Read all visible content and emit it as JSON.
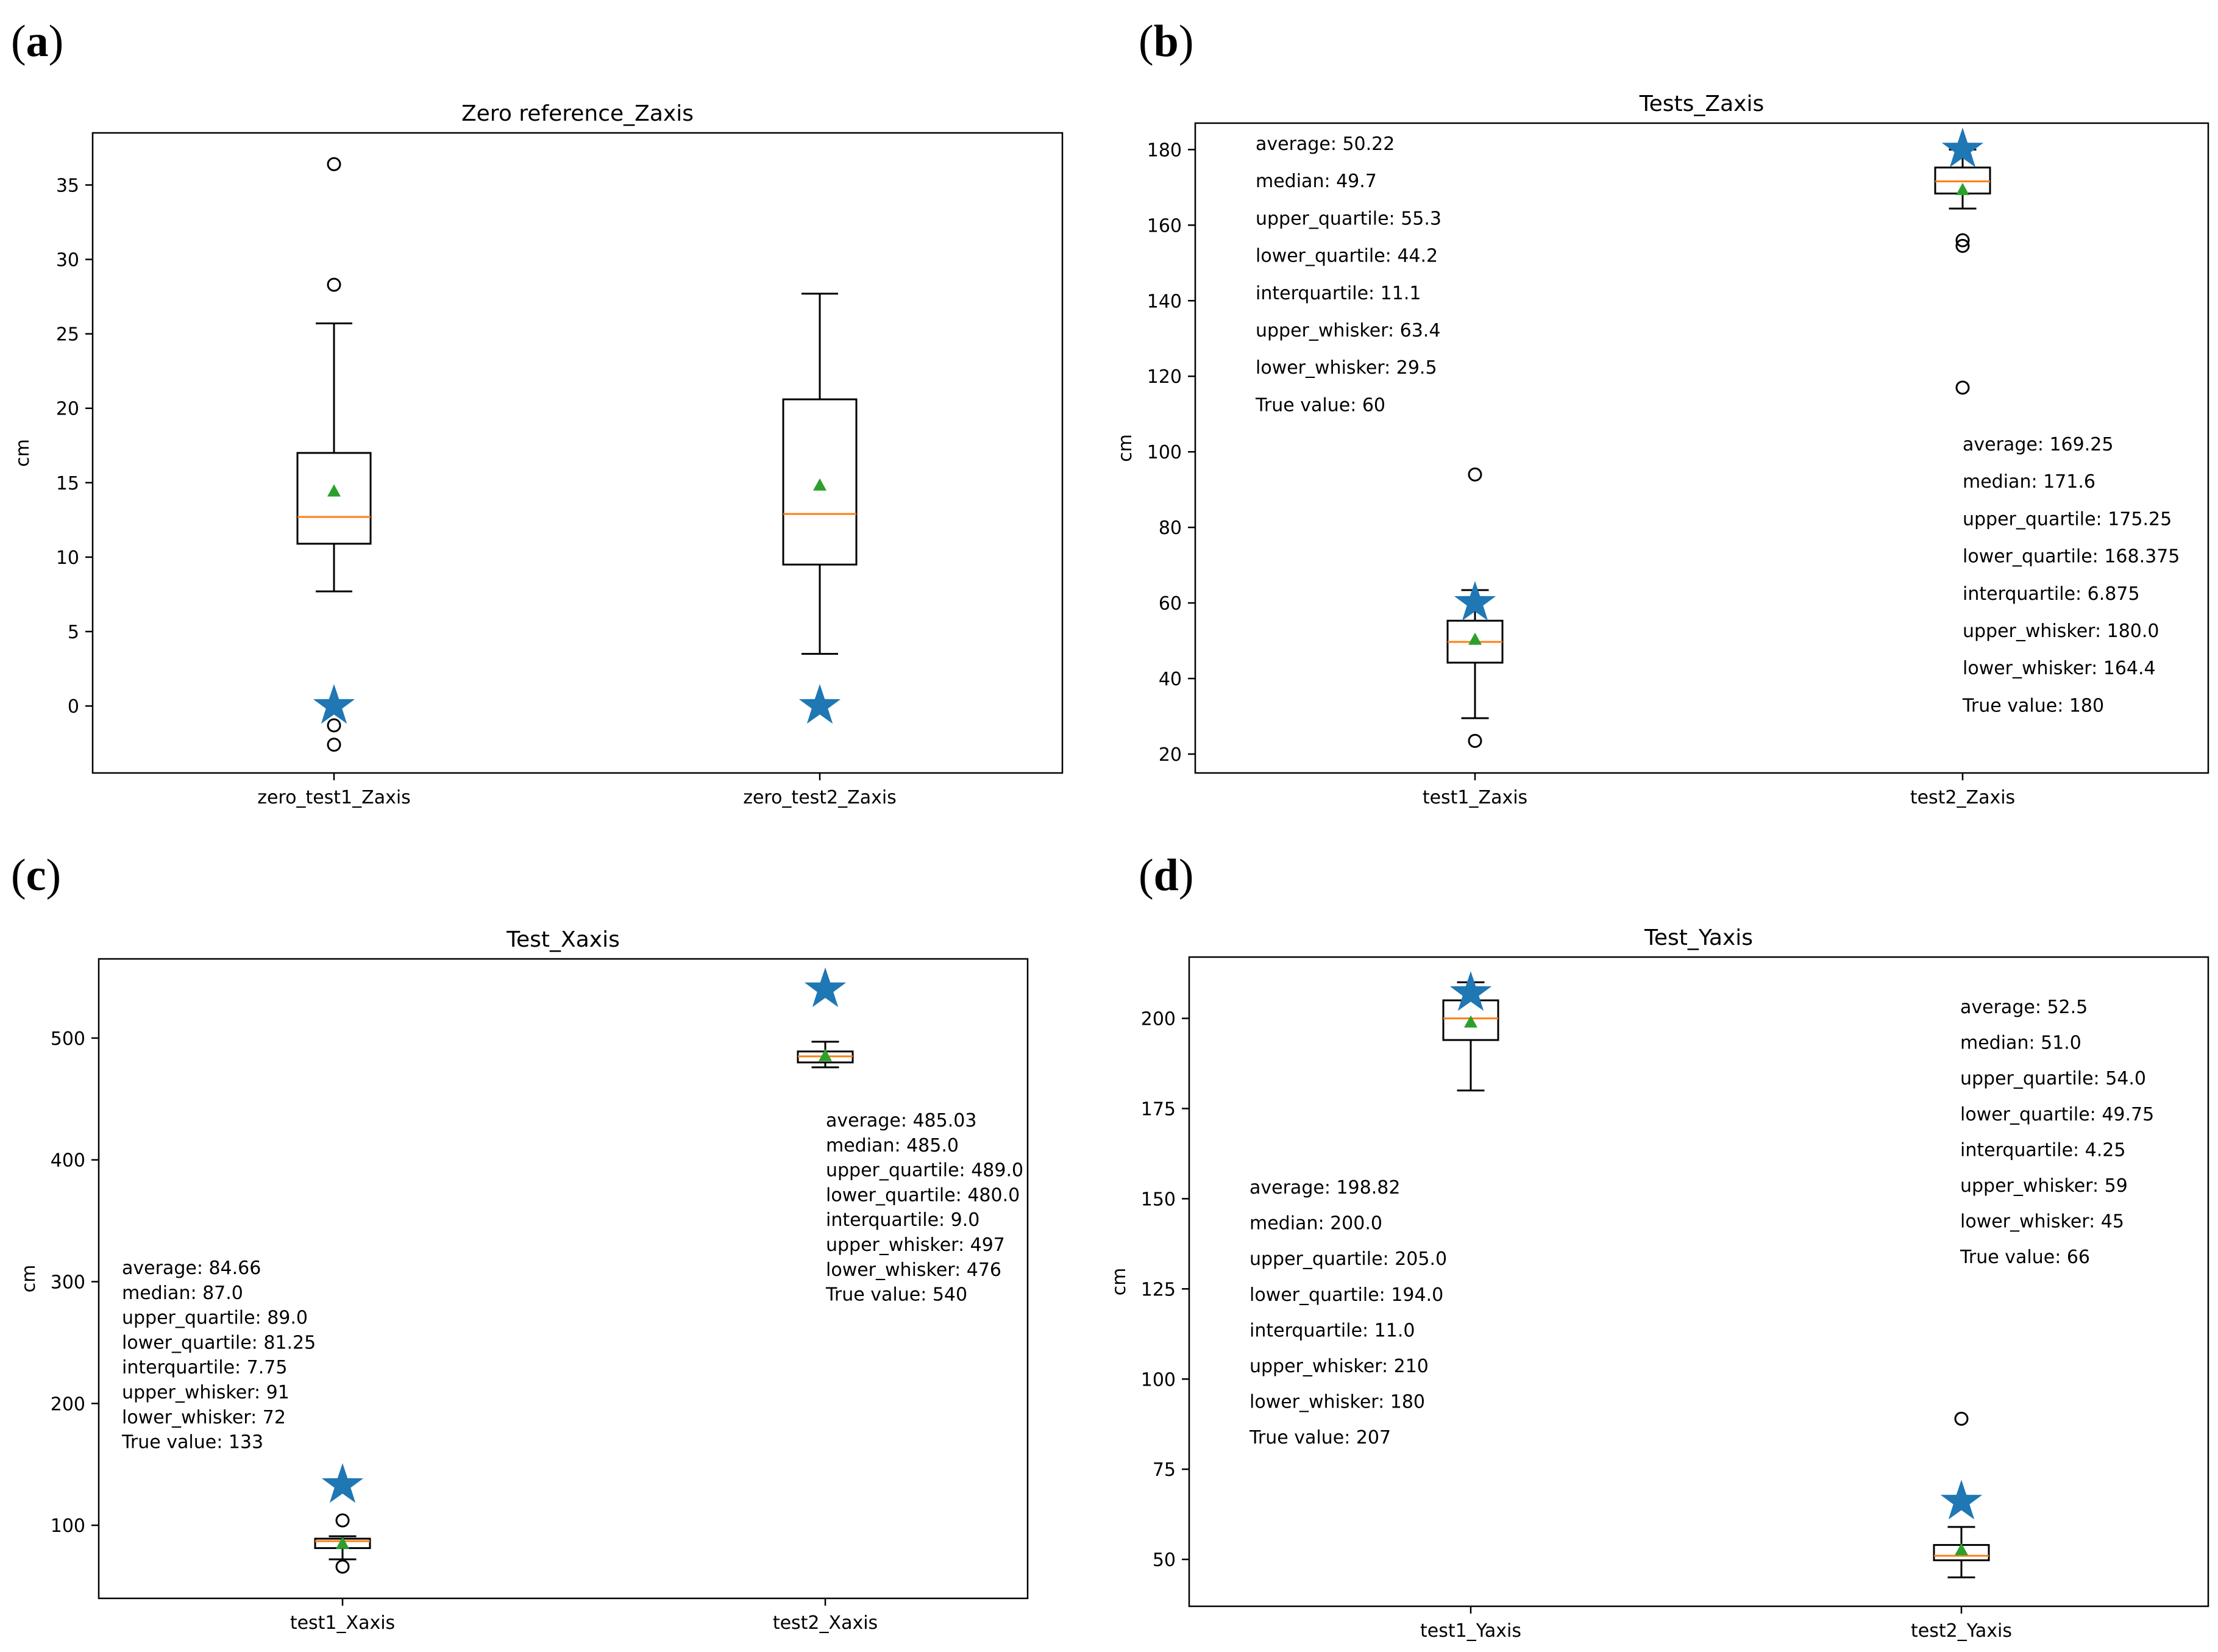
{
  "style": {
    "box_color": "#000000",
    "median_color": "#ff7f0e",
    "mean_color": "#2ca02c",
    "true_value_color": "#1f77b4"
  },
  "chart_data": [
    {
      "id": "a",
      "panel_label": "a",
      "type": "boxplot",
      "title": "Zero reference_Zaxis",
      "ylabel": "cm",
      "ylim": [
        -4.5,
        38.5
      ],
      "yticks": [
        0,
        5,
        10,
        15,
        20,
        25,
        30,
        35
      ],
      "categories": [
        "zero_test1_Zaxis",
        "zero_test2_Zaxis"
      ],
      "boxes": [
        {
          "q1": 10.9,
          "median": 12.7,
          "q3": 17.0,
          "whisker_low": 7.7,
          "whisker_high": 25.7,
          "mean": 14.4,
          "outliers": [
            36.4,
            28.3,
            -1.3,
            -2.6
          ],
          "true_value": 0
        },
        {
          "q1": 9.5,
          "median": 12.9,
          "q3": 20.6,
          "whisker_low": 3.5,
          "whisker_high": 27.7,
          "mean": 14.8,
          "outliers": [],
          "true_value": 0
        }
      ],
      "annotations": []
    },
    {
      "id": "b",
      "panel_label": "b",
      "type": "boxplot",
      "title": "Tests_Zaxis",
      "ylabel": "cm",
      "ylim": [
        15,
        187
      ],
      "yticks": [
        20,
        40,
        60,
        80,
        100,
        120,
        140,
        160,
        180
      ],
      "categories": [
        "test1_Zaxis",
        "test2_Zaxis"
      ],
      "boxes": [
        {
          "q1": 44.2,
          "median": 49.7,
          "q3": 55.3,
          "whisker_low": 29.5,
          "whisker_high": 63.4,
          "mean": 50.22,
          "outliers": [
            94,
            23.5
          ],
          "true_value": 60
        },
        {
          "q1": 168.375,
          "median": 171.6,
          "q3": 175.25,
          "whisker_low": 164.4,
          "whisker_high": 180.0,
          "mean": 169.25,
          "outliers": [
            156,
            154.5,
            117
          ],
          "true_value": 180
        }
      ],
      "annotations": [
        {
          "box": 0,
          "lines": [
            "average: 50.22",
            "median: 49.7",
            "upper_quartile: 55.3",
            "lower_quartile: 44.2",
            "interquartile: 11.1",
            "upper_whisker: 63.4",
            "lower_whisker: 29.5",
            "True value: 60"
          ]
        },
        {
          "box": 1,
          "lines": [
            "average: 169.25",
            "median: 171.6",
            "upper_quartile: 175.25",
            "lower_quartile: 168.375",
            "interquartile: 6.875",
            "upper_whisker: 180.0",
            "lower_whisker: 164.4",
            "True value: 180"
          ]
        }
      ]
    },
    {
      "id": "c",
      "panel_label": "c",
      "type": "boxplot",
      "title": "Test_Xaxis",
      "ylabel": "cm",
      "ylim": [
        40,
        565
      ],
      "yticks": [
        100,
        200,
        300,
        400,
        500
      ],
      "categories": [
        "test1_Xaxis",
        "test2_Xaxis"
      ],
      "boxes": [
        {
          "q1": 81.25,
          "median": 87.0,
          "q3": 89.0,
          "whisker_low": 72,
          "whisker_high": 91,
          "mean": 84.66,
          "outliers": [
            104,
            66
          ],
          "true_value": 133
        },
        {
          "q1": 480.0,
          "median": 485.0,
          "q3": 489.0,
          "whisker_low": 476,
          "whisker_high": 497,
          "mean": 485.03,
          "outliers": [],
          "true_value": 540
        }
      ],
      "annotations": [
        {
          "box": 0,
          "lines": [
            "average: 84.66",
            "median: 87.0",
            "upper_quartile: 89.0",
            "lower_quartile: 81.25",
            "interquartile: 7.75",
            "upper_whisker: 91",
            "lower_whisker: 72",
            "True value: 133"
          ]
        },
        {
          "box": 1,
          "lines": [
            "average: 485.03",
            "median: 485.0",
            "upper_quartile: 489.0",
            "lower_quartile: 480.0",
            "interquartile: 9.0",
            "upper_whisker: 497",
            "lower_whisker: 476",
            "True value: 540"
          ]
        }
      ]
    },
    {
      "id": "d",
      "panel_label": "d",
      "type": "boxplot",
      "title": "Test_Yaxis",
      "ylabel": "cm",
      "ylim": [
        37,
        217
      ],
      "yticks": [
        50,
        75,
        100,
        125,
        150,
        175,
        200
      ],
      "categories": [
        "test1_Yaxis",
        "test2_Yaxis"
      ],
      "boxes": [
        {
          "q1": 194.0,
          "median": 200.0,
          "q3": 205.0,
          "whisker_low": 180,
          "whisker_high": 210,
          "mean": 198.82,
          "outliers": [],
          "true_value": 207
        },
        {
          "q1": 49.75,
          "median": 51.0,
          "q3": 54.0,
          "whisker_low": 45,
          "whisker_high": 59,
          "mean": 52.5,
          "outliers": [
            89
          ],
          "true_value": 66
        }
      ],
      "annotations": [
        {
          "box": 0,
          "lines": [
            "average: 198.82",
            "median: 200.0",
            "upper_quartile: 205.0",
            "lower_quartile: 194.0",
            "interquartile: 11.0",
            "upper_whisker: 210",
            "lower_whisker: 180",
            "True value: 207"
          ]
        },
        {
          "box": 1,
          "lines": [
            "average: 52.5",
            "median: 51.0",
            "upper_quartile: 54.0",
            "lower_quartile: 49.75",
            "interquartile: 4.25",
            "upper_whisker: 59",
            "lower_whisker: 45",
            "True value: 66"
          ]
        }
      ]
    }
  ]
}
